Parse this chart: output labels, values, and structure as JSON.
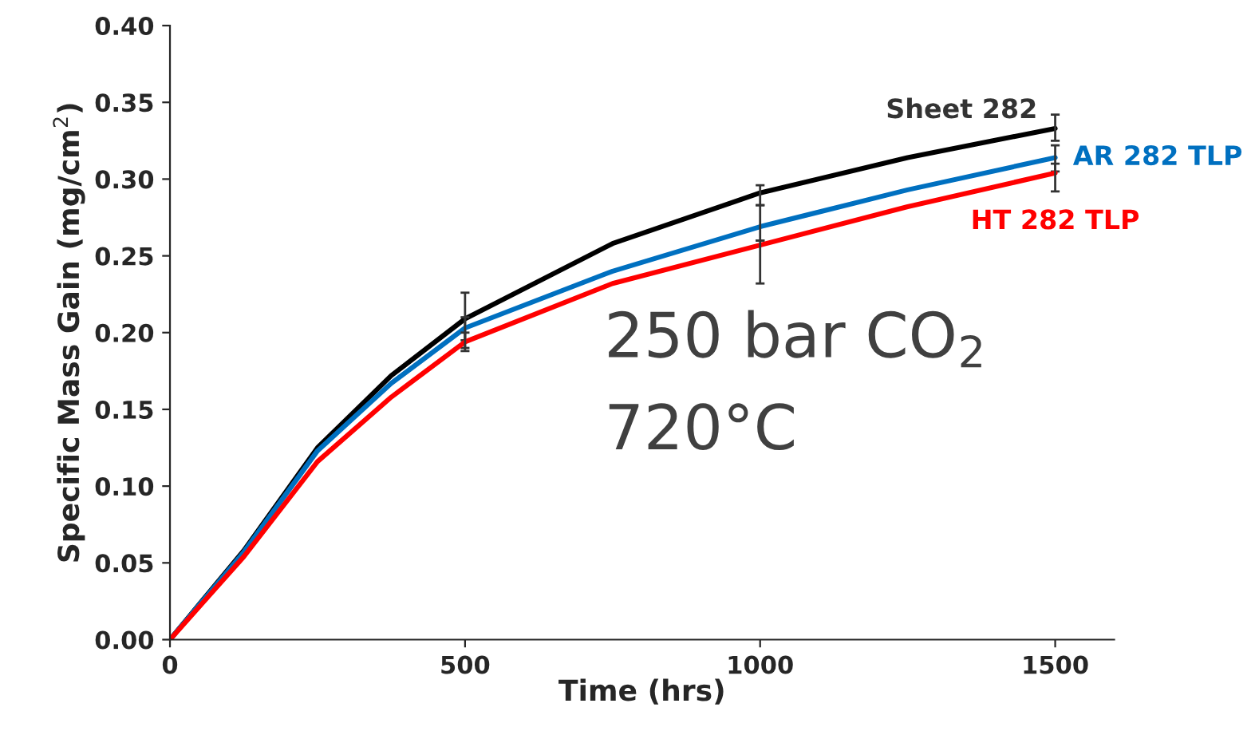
{
  "chart_data": {
    "type": "line",
    "xlabel": "Time (hrs)",
    "ylabel": "Specific Mass Gain (mg/cm$^{2}$)",
    "x": [
      0,
      125,
      250,
      375,
      500,
      750,
      1000,
      1250,
      1500
    ],
    "series": [
      {
        "name": "Sheet 282",
        "color": "#000000",
        "values": [
          0,
          0.058,
          0.125,
          0.172,
          0.209,
          0.258,
          0.291,
          0.314,
          0.333
        ],
        "errors": [
          null,
          null,
          null,
          null,
          [
            0.195,
            0.226
          ],
          null,
          [
            0.283,
            0.296
          ],
          null,
          [
            0.325,
            0.342
          ]
        ]
      },
      {
        "name": "AR 282 TLP",
        "color": "#0070c0",
        "values": [
          0,
          0.057,
          0.123,
          0.167,
          0.203,
          0.24,
          0.269,
          0.293,
          0.314
        ],
        "errors": [
          null,
          null,
          null,
          null,
          [
            0.19,
            0.21
          ],
          null,
          [
            0.26,
            0.283
          ],
          null,
          [
            0.305,
            0.322
          ]
        ]
      },
      {
        "name": "HT 282 TLP",
        "color": "#ff0000",
        "values": [
          0,
          0.054,
          0.116,
          0.158,
          0.194,
          0.232,
          0.257,
          0.282,
          0.304
        ],
        "errors": [
          null,
          null,
          null,
          null,
          [
            0.188,
            0.2
          ],
          null,
          [
            0.232,
            0.26
          ],
          null,
          [
            0.292,
            0.31
          ]
        ]
      }
    ],
    "xlim": [
      0,
      1600
    ],
    "xticks": [
      0,
      500,
      1000,
      1500
    ],
    "ylim": [
      0,
      0.4
    ],
    "yticks": [
      {
        "value": 0,
        "label": "0.00"
      },
      {
        "value": 0.05,
        "label": "0.05"
      },
      {
        "value": 0.1,
        "label": "0.10"
      },
      {
        "value": 0.15,
        "label": "0.15"
      },
      {
        "value": 0.2,
        "label": "0.20"
      },
      {
        "value": 0.25,
        "label": "0.25"
      },
      {
        "value": 0.3,
        "label": "0.30"
      },
      {
        "value": 0.35,
        "label": "0.35"
      },
      {
        "value": 0.4,
        "label": "0.40"
      }
    ],
    "annotations": [
      "250 bar CO$_{2}$",
      "720°C"
    ],
    "grid": false,
    "legend": false
  }
}
